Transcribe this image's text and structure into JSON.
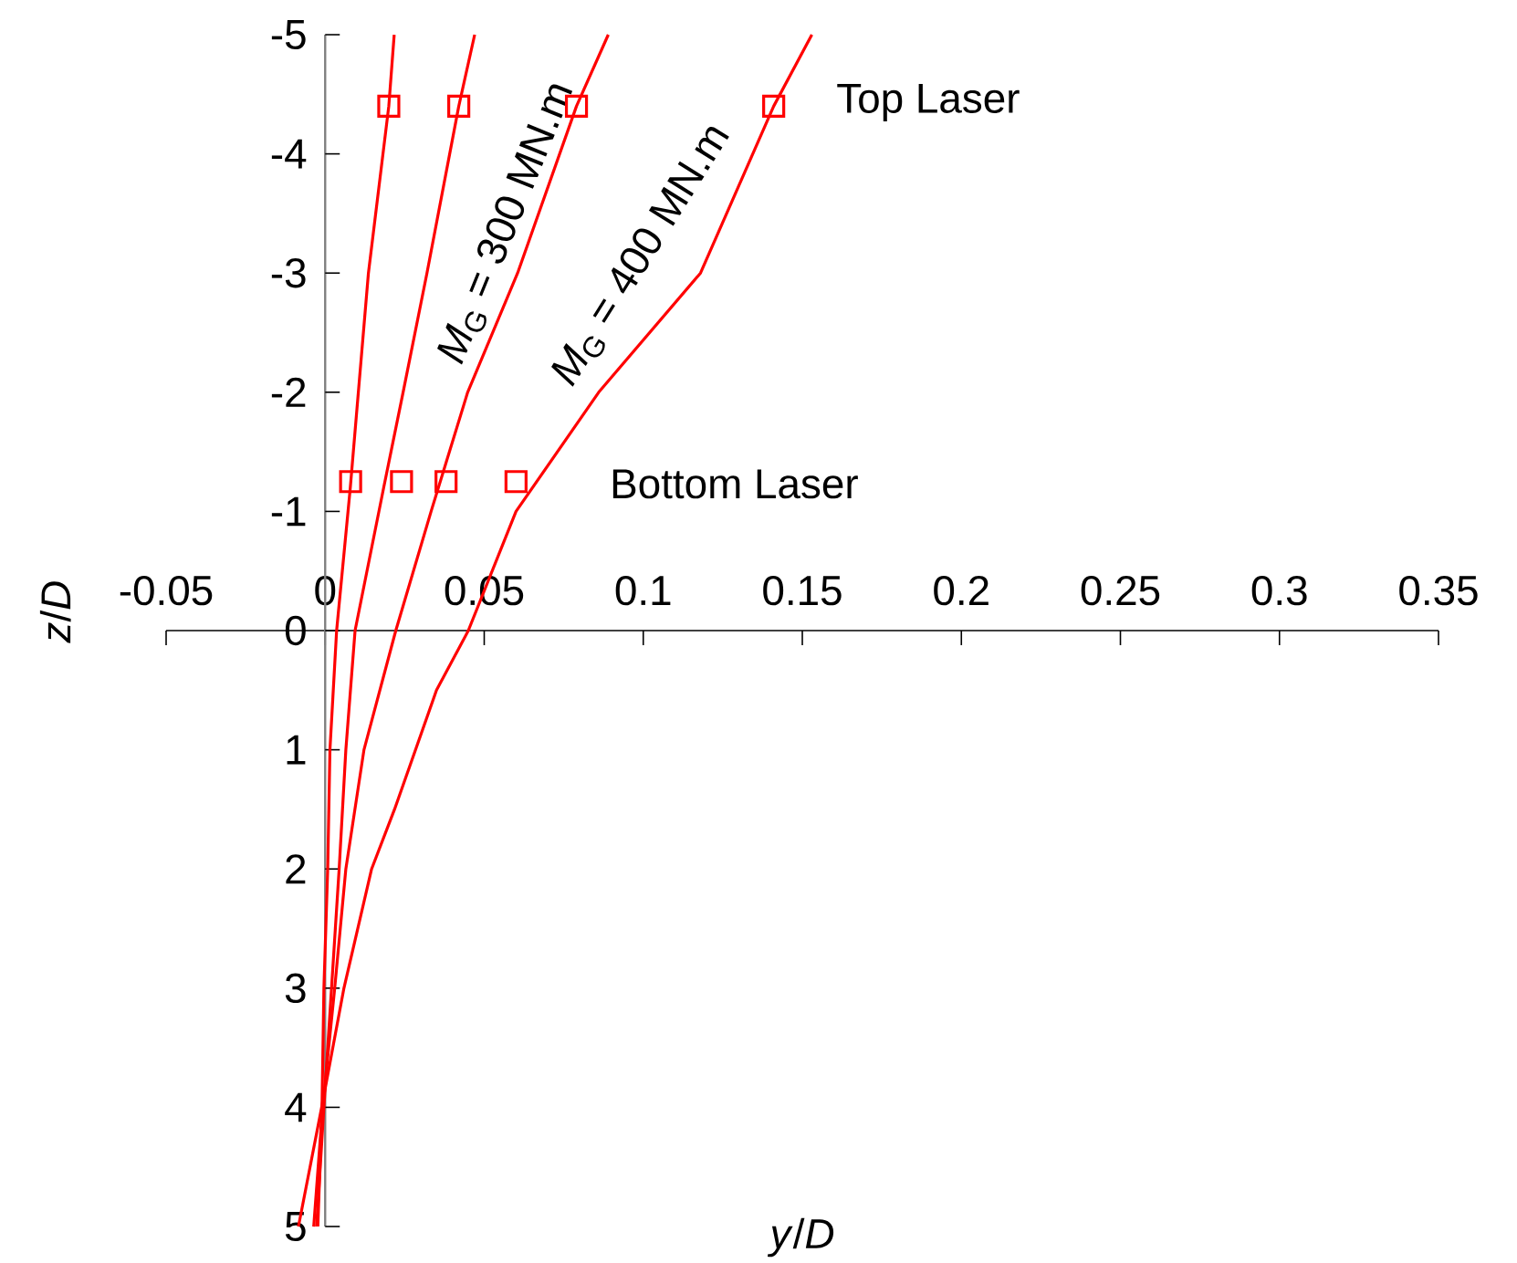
{
  "chart_data": {
    "type": "line",
    "xlabel": "*y*/*D*",
    "ylabel": "*z*/*D*",
    "xlim": [
      -0.05,
      0.35
    ],
    "ylim": [
      5,
      -5
    ],
    "xticks": [
      -0.05,
      0,
      0.05,
      0.1,
      0.15,
      0.2,
      0.25,
      0.3,
      0.35
    ],
    "yticks": [
      -5,
      -4,
      -3,
      -2,
      -1,
      0,
      1,
      2,
      3,
      4,
      5
    ],
    "marker": "none",
    "line_style": "solid",
    "grid": false,
    "series": [
      {
        "color": "#ff0000",
        "x": [
          -0.0023,
          -0.001,
          -0.0004,
          0.0008,
          0.0015,
          0.0036,
          0.0079,
          0.0136,
          0.02,
          0.0217
        ],
        "values": [
          5,
          4,
          3,
          2,
          1,
          0,
          -1.2,
          -3,
          -4.4,
          -5
        ]
      },
      {
        "color": "#ff0000",
        "x": [
          -0.0027,
          -0.0004,
          0.002,
          0.0044,
          0.0065,
          0.0094,
          0.0184,
          0.0245,
          0.032,
          0.042,
          0.047
        ],
        "values": [
          5,
          4,
          3,
          2,
          1,
          0,
          -1.2,
          -2,
          -3,
          -4.4,
          -5
        ]
      },
      {
        "color": "#ff0000",
        "x": [
          -0.0036,
          -0.0008,
          0.003,
          0.0065,
          0.0122,
          0.0222,
          0.0333,
          0.0448,
          0.0605,
          0.079,
          0.089
        ],
        "values": [
          5,
          4,
          3,
          2,
          1,
          0,
          -1,
          -2,
          -3,
          -4.4,
          -5
        ]
      },
      {
        "color": "#ff0000",
        "x": [
          -0.0084,
          -0.0011,
          0.0059,
          0.0146,
          0.0218,
          0.0284,
          0.035,
          0.045,
          0.06,
          0.086,
          0.118,
          0.141,
          0.153
        ],
        "values": [
          5,
          4,
          3,
          2,
          1.5,
          1,
          0.5,
          0,
          -1,
          -2,
          -3,
          -4.4,
          -5
        ]
      },
      {
        "type": "scatter",
        "color": "#ff0000",
        "marker": "square",
        "x": [
          0.02,
          0.042,
          0.079,
          0.141
        ],
        "values": [
          -4.4,
          -4.4,
          -4.4,
          -4.4
        ]
      },
      {
        "type": "scatter",
        "color": "#ff0000",
        "marker": "square",
        "x": [
          0.008,
          0.024,
          0.038,
          0.06
        ],
        "values": [
          -1.25,
          -1.25,
          -1.25,
          -1.25
        ]
      }
    ],
    "annotations": [
      "Top Laser",
      "Bottom Laser",
      "*M*$_{G}$ = 300 MN.m",
      "*M*$_{G}$ = 400 MN.m"
    ]
  }
}
